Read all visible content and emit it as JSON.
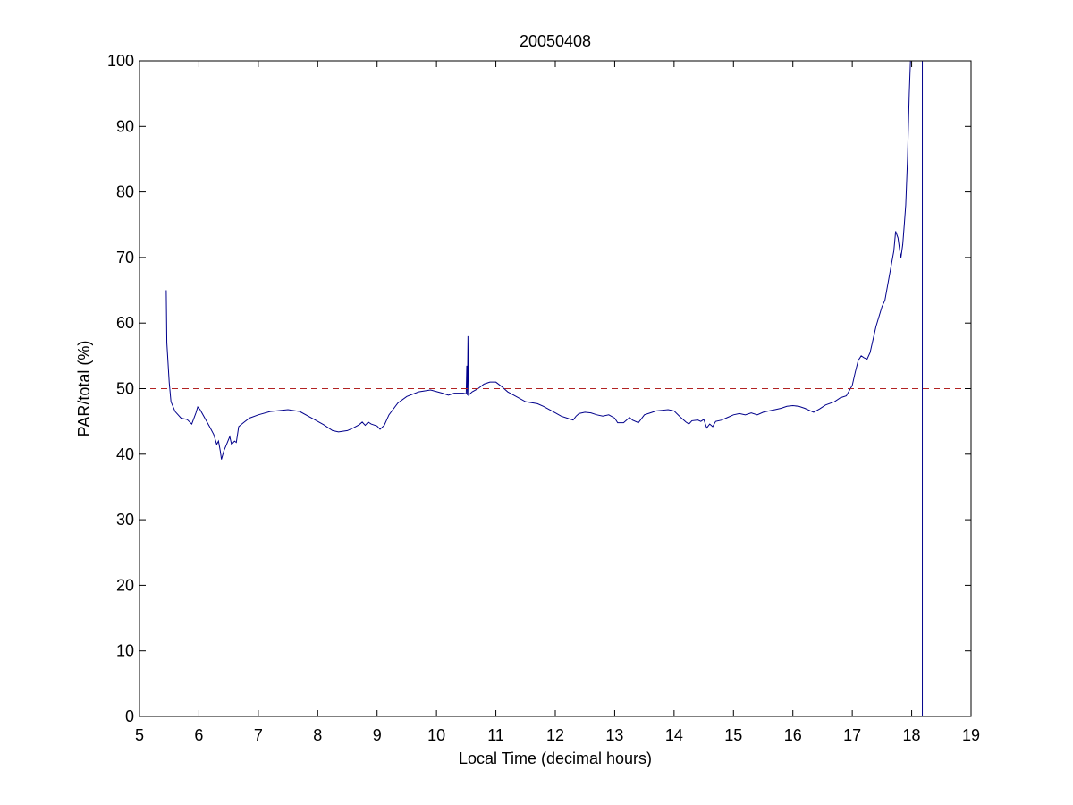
{
  "chart_data": {
    "type": "line",
    "title": "20050408",
    "xlabel": "Local Time (decimal hours)",
    "ylabel": "PAR/total (%)",
    "xlim": [
      5,
      19
    ],
    "ylim": [
      0,
      100
    ],
    "xticks": [
      5,
      6,
      7,
      8,
      9,
      10,
      11,
      12,
      13,
      14,
      15,
      16,
      17,
      18,
      19
    ],
    "yticks": [
      0,
      10,
      20,
      30,
      40,
      50,
      60,
      70,
      80,
      90,
      100
    ],
    "grid": false,
    "legend": "none",
    "series": [
      {
        "color": "#00008b",
        "style": "solid",
        "points": [
          [
            5.45,
            65
          ],
          [
            5.46,
            57
          ],
          [
            5.5,
            51
          ],
          [
            5.53,
            48
          ],
          [
            5.6,
            46.5
          ],
          [
            5.7,
            45.5
          ],
          [
            5.8,
            45.3
          ],
          [
            5.88,
            44.6
          ],
          [
            5.95,
            46.3
          ],
          [
            5.98,
            47.2
          ],
          [
            6.02,
            46.8
          ],
          [
            6.1,
            45.5
          ],
          [
            6.18,
            44.2
          ],
          [
            6.25,
            43
          ],
          [
            6.3,
            41.5
          ],
          [
            6.33,
            42
          ],
          [
            6.36,
            40.5
          ],
          [
            6.38,
            39.2
          ],
          [
            6.42,
            40.5
          ],
          [
            6.48,
            41.8
          ],
          [
            6.52,
            42.7
          ],
          [
            6.55,
            41.5
          ],
          [
            6.6,
            42
          ],
          [
            6.63,
            41.8
          ],
          [
            6.67,
            44.2
          ],
          [
            6.75,
            44.8
          ],
          [
            6.85,
            45.5
          ],
          [
            7.0,
            46
          ],
          [
            7.2,
            46.5
          ],
          [
            7.5,
            46.8
          ],
          [
            7.7,
            46.5
          ],
          [
            7.9,
            45.5
          ],
          [
            8.1,
            44.5
          ],
          [
            8.25,
            43.6
          ],
          [
            8.35,
            43.4
          ],
          [
            8.5,
            43.6
          ],
          [
            8.6,
            44
          ],
          [
            8.7,
            44.5
          ],
          [
            8.75,
            44.9
          ],
          [
            8.8,
            44.4
          ],
          [
            8.85,
            44.9
          ],
          [
            8.9,
            44.6
          ],
          [
            9.0,
            44.3
          ],
          [
            9.05,
            43.8
          ],
          [
            9.12,
            44.4
          ],
          [
            9.2,
            46
          ],
          [
            9.35,
            47.8
          ],
          [
            9.5,
            48.8
          ],
          [
            9.7,
            49.5
          ],
          [
            9.9,
            49.8
          ],
          [
            10.1,
            49.3
          ],
          [
            10.2,
            49
          ],
          [
            10.3,
            49.3
          ],
          [
            10.45,
            49.3
          ],
          [
            10.5,
            49.2
          ],
          [
            10.51,
            53.5
          ],
          [
            10.52,
            49
          ],
          [
            10.53,
            58
          ],
          [
            10.54,
            49
          ],
          [
            10.6,
            49.5
          ],
          [
            10.7,
            50
          ],
          [
            10.8,
            50.7
          ],
          [
            10.9,
            51
          ],
          [
            11.0,
            51
          ],
          [
            11.1,
            50.3
          ],
          [
            11.2,
            49.5
          ],
          [
            11.3,
            49
          ],
          [
            11.5,
            48
          ],
          [
            11.7,
            47.7
          ],
          [
            11.8,
            47.3
          ],
          [
            11.9,
            46.8
          ],
          [
            12.0,
            46.3
          ],
          [
            12.1,
            45.8
          ],
          [
            12.2,
            45.5
          ],
          [
            12.3,
            45.2
          ],
          [
            12.35,
            45.8
          ],
          [
            12.4,
            46.2
          ],
          [
            12.5,
            46.4
          ],
          [
            12.6,
            46.3
          ],
          [
            12.7,
            46
          ],
          [
            12.8,
            45.8
          ],
          [
            12.9,
            46
          ],
          [
            13.0,
            45.5
          ],
          [
            13.05,
            44.8
          ],
          [
            13.15,
            44.8
          ],
          [
            13.25,
            45.6
          ],
          [
            13.3,
            45.2
          ],
          [
            13.4,
            44.8
          ],
          [
            13.5,
            46
          ],
          [
            13.6,
            46.3
          ],
          [
            13.7,
            46.6
          ],
          [
            13.8,
            46.7
          ],
          [
            13.9,
            46.8
          ],
          [
            14.0,
            46.6
          ],
          [
            14.1,
            45.7
          ],
          [
            14.2,
            44.9
          ],
          [
            14.25,
            44.6
          ],
          [
            14.3,
            45.1
          ],
          [
            14.4,
            45.2
          ],
          [
            14.45,
            45
          ],
          [
            14.5,
            45.3
          ],
          [
            14.55,
            44
          ],
          [
            14.6,
            44.6
          ],
          [
            14.65,
            44.2
          ],
          [
            14.7,
            45
          ],
          [
            14.8,
            45.2
          ],
          [
            14.9,
            45.6
          ],
          [
            15.0,
            46
          ],
          [
            15.1,
            46.2
          ],
          [
            15.2,
            46
          ],
          [
            15.3,
            46.3
          ],
          [
            15.4,
            46
          ],
          [
            15.5,
            46.4
          ],
          [
            15.6,
            46.6
          ],
          [
            15.7,
            46.8
          ],
          [
            15.8,
            47
          ],
          [
            15.9,
            47.3
          ],
          [
            16.0,
            47.4
          ],
          [
            16.1,
            47.3
          ],
          [
            16.2,
            47
          ],
          [
            16.3,
            46.6
          ],
          [
            16.35,
            46.4
          ],
          [
            16.45,
            46.9
          ],
          [
            16.55,
            47.5
          ],
          [
            16.7,
            48
          ],
          [
            16.8,
            48.6
          ],
          [
            16.9,
            48.9
          ],
          [
            17.0,
            50.5
          ],
          [
            17.05,
            52.5
          ],
          [
            17.1,
            54.3
          ],
          [
            17.15,
            55
          ],
          [
            17.2,
            54.7
          ],
          [
            17.25,
            54.5
          ],
          [
            17.3,
            55.5
          ],
          [
            17.35,
            57.5
          ],
          [
            17.4,
            59.5
          ],
          [
            17.45,
            61
          ],
          [
            17.5,
            62.5
          ],
          [
            17.55,
            63.5
          ],
          [
            17.6,
            66
          ],
          [
            17.65,
            68.5
          ],
          [
            17.7,
            71
          ],
          [
            17.73,
            74
          ],
          [
            17.77,
            73
          ],
          [
            17.8,
            71
          ],
          [
            17.82,
            70
          ],
          [
            17.85,
            72
          ],
          [
            17.88,
            75.5
          ],
          [
            17.9,
            78
          ],
          [
            17.93,
            85
          ],
          [
            17.96,
            95
          ],
          [
            17.98,
            100
          ]
        ]
      },
      {
        "color": "#00008b",
        "style": "solid",
        "points": [
          [
            18.18,
            100
          ],
          [
            18.18,
            0
          ]
        ]
      },
      {
        "color": "#b22222",
        "style": "dashed",
        "points": [
          [
            5,
            50
          ],
          [
            19,
            50
          ]
        ]
      }
    ]
  }
}
